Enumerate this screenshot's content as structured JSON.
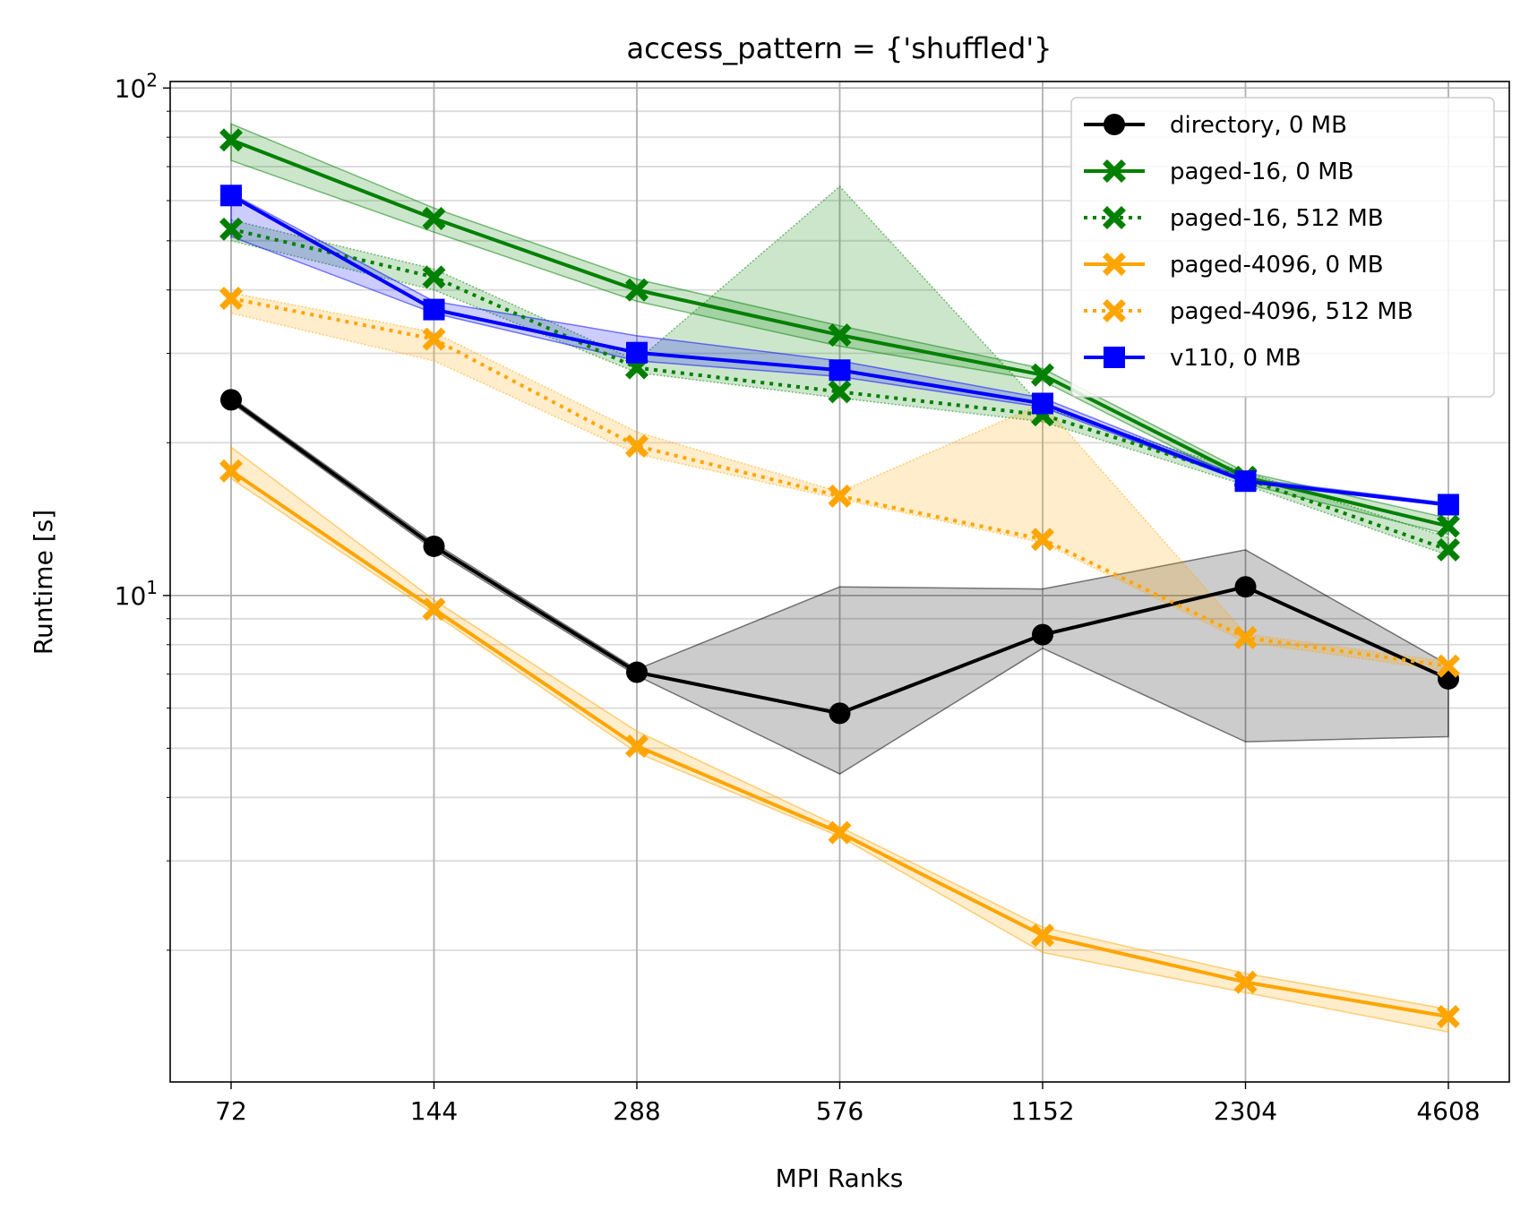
{
  "chart_data": {
    "type": "line",
    "title": "access_pattern = {'shuffled'}",
    "xlabel": "MPI Ranks",
    "ylabel": "Runtime [s]",
    "x_scale": "categorical",
    "y_scale": "log",
    "ylim": [
      1.1,
      103
    ],
    "grid": true,
    "legend_position": "top-right",
    "categories": [
      "72",
      "144",
      "288",
      "576",
      "1152",
      "2304",
      "4608"
    ],
    "y_ticks": [
      {
        "base": "10",
        "exp": "1",
        "value": 10
      },
      {
        "base": "10",
        "exp": "2",
        "value": 100
      }
    ],
    "series": [
      {
        "name": "directory, 0 MB",
        "color": "#000000",
        "linestyle": "solid",
        "marker": "circle",
        "values": [
          24.3,
          12.5,
          7.06,
          5.86,
          8.37,
          10.4,
          6.85
        ],
        "lower": [
          24.0,
          12.3,
          6.95,
          4.45,
          7.87,
          5.15,
          5.27
        ],
        "upper": [
          24.6,
          12.7,
          7.15,
          10.4,
          10.3,
          12.3,
          7.3
        ]
      },
      {
        "name": "paged-16, 0 MB",
        "color": "#008000",
        "linestyle": "solid",
        "marker": "x-filled",
        "values": [
          79,
          55.3,
          40,
          32.6,
          27.2,
          17.1,
          13.7
        ],
        "lower": [
          72,
          52,
          38,
          31,
          26.5,
          16.6,
          13.2
        ],
        "upper": [
          85,
          58,
          42,
          34,
          28,
          17.5,
          14.2
        ]
      },
      {
        "name": "paged-16, 512 MB",
        "color": "#008000",
        "linestyle": "dotted",
        "marker": "x-filled",
        "values": [
          52.7,
          42.4,
          28.1,
          25.2,
          22.7,
          17.0,
          12.3
        ],
        "lower": [
          50,
          40,
          27.5,
          24.5,
          22,
          16.5,
          12
        ],
        "upper": [
          55,
          44,
          29,
          64,
          23.5,
          17.5,
          13
        ]
      },
      {
        "name": "paged-4096, 0 MB",
        "color": "#ffa500",
        "linestyle": "solid",
        "marker": "x-filled",
        "values": [
          17.6,
          9.4,
          5.05,
          3.41,
          2.14,
          1.73,
          1.48
        ],
        "lower": [
          17.0,
          9.2,
          4.9,
          3.35,
          1.98,
          1.65,
          1.38
        ],
        "upper": [
          19.6,
          9.8,
          5.4,
          3.5,
          2.22,
          1.8,
          1.53
        ]
      },
      {
        "name": "paged-4096, 512 MB",
        "color": "#ffa500",
        "linestyle": "dotted",
        "marker": "x-filled",
        "values": [
          38.5,
          32,
          19.7,
          15.7,
          12.9,
          8.26,
          7.26
        ],
        "lower": [
          36,
          29,
          19,
          15.5,
          12.7,
          8.1,
          7.1
        ],
        "upper": [
          39.5,
          33,
          21,
          16,
          23.9,
          8.4,
          7.4
        ]
      },
      {
        "name": "v110, 0 MB",
        "color": "#0000ff",
        "linestyle": "solid",
        "marker": "square",
        "values": [
          61.4,
          36.6,
          30.1,
          27.8,
          23.9,
          16.8,
          15.1
        ],
        "lower": [
          51,
          36,
          29,
          27,
          23.5,
          16.7,
          15.0
        ],
        "upper": [
          62,
          38,
          32.5,
          29,
          24.5,
          17,
          15.2
        ]
      }
    ]
  }
}
